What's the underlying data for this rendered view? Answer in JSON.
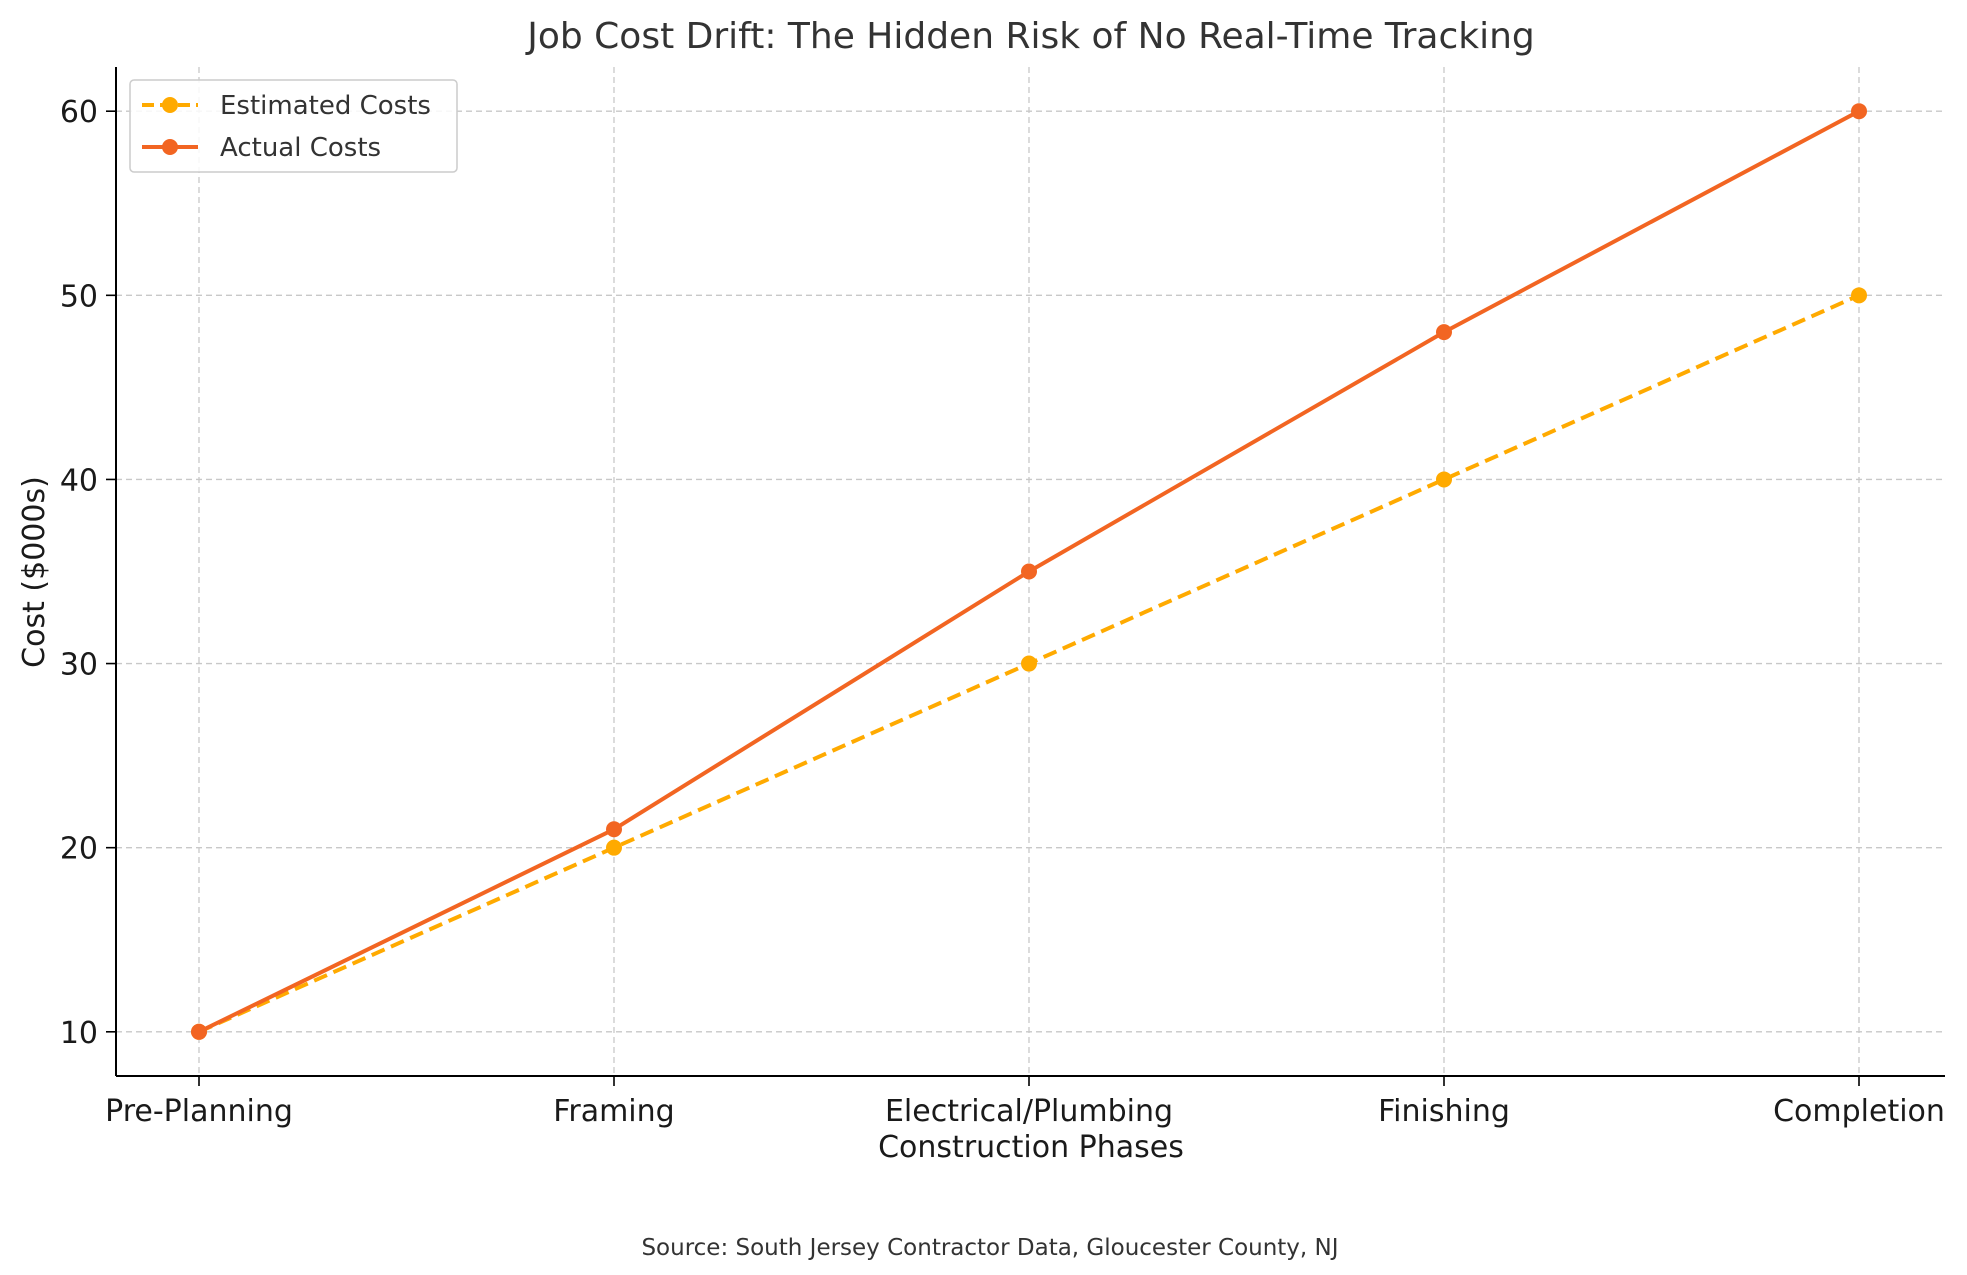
{
  "chart_data": {
    "type": "line",
    "title": "Job Cost Drift: The Hidden Risk of No Real-Time Tracking",
    "xlabel": "Construction Phases",
    "ylabel": "Cost ($000s)",
    "categories": [
      "Pre-Planning",
      "Framing",
      "Electrical/Plumbing",
      "Finishing",
      "Completion"
    ],
    "ylim": [
      7.6,
      62.4
    ],
    "yticks": [
      10,
      20,
      30,
      40,
      50,
      60
    ],
    "grid": true,
    "legend_position": "top-left",
    "series": [
      {
        "name": "Estimated Costs",
        "values": [
          10,
          20,
          30,
          40,
          50
        ],
        "color": "#FFAA00",
        "style": "dashed",
        "marker": "circle"
      },
      {
        "name": "Actual Costs",
        "values": [
          10,
          21,
          35,
          48,
          60
        ],
        "color": "#F26522",
        "style": "solid",
        "marker": "circle"
      }
    ],
    "annotation": "Source: South Jersey Contractor Data, Gloucester County, NJ"
  }
}
